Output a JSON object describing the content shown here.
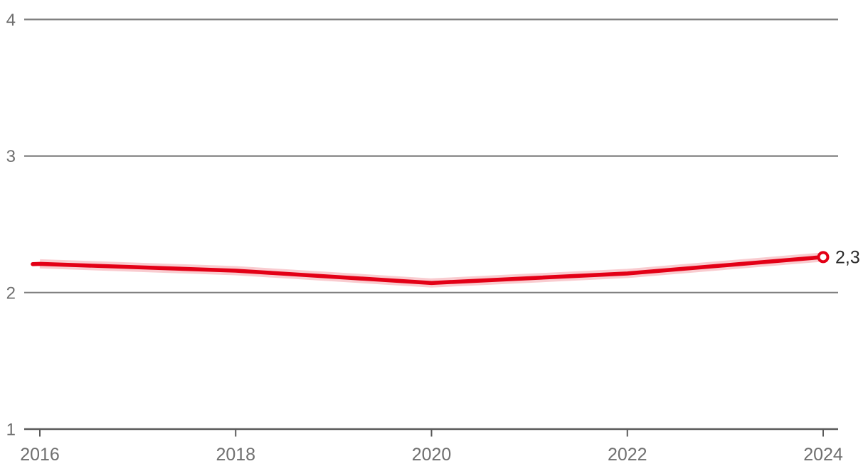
{
  "chart_data": {
    "type": "line",
    "title": "",
    "xlabel": "",
    "ylabel": "",
    "x": [
      2016,
      2018,
      2020,
      2022,
      2024
    ],
    "series": [
      {
        "name": "main-series",
        "values": [
          2.21,
          2.16,
          2.07,
          2.14,
          2.26
        ]
      }
    ],
    "confidence_band": {
      "present": true,
      "follows_line": true
    },
    "end_point_label": "2,3",
    "x_ticks": [
      "2016",
      "2018",
      "2020",
      "2022",
      "2024"
    ],
    "y_ticks": [
      "1",
      "2",
      "3",
      "4"
    ],
    "ylim": [
      1,
      4
    ],
    "xlim": [
      2015.8,
      2024.2
    ],
    "grid": "horizontal-only",
    "legend_position": "none",
    "marker": "open-circle-at-last-point",
    "colors": {
      "line": "#e30016",
      "band": "rgba(227, 0, 22, 0.20)",
      "gridline": "#7f7f7f",
      "axis": "#5a5a5a",
      "tick_label": "#6f6f6f",
      "value_label": "#2b2b2b",
      "background": "#ffffff"
    }
  }
}
